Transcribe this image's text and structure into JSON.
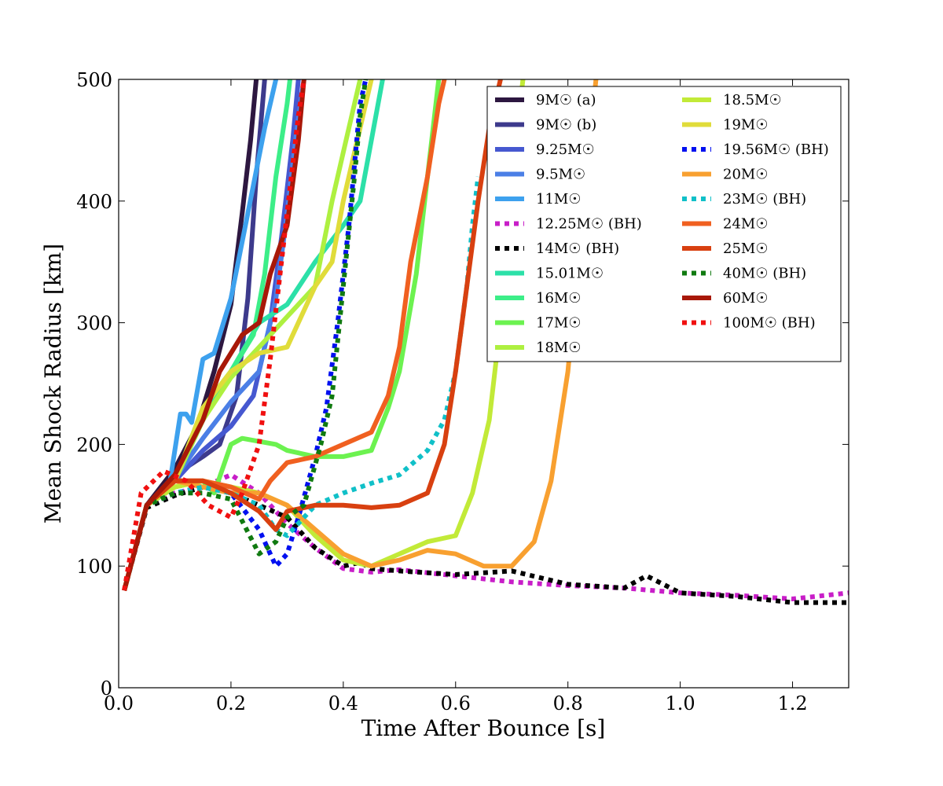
{
  "chart_data": {
    "type": "line",
    "title": "",
    "xlabel": "Time After Bounce [s]",
    "ylabel": "Mean Shock Radius [km]",
    "xlim": [
      0.0,
      1.3
    ],
    "ylim": [
      0,
      500
    ],
    "xticks": [
      "0.0",
      "0.2",
      "0.4",
      "0.6",
      "0.8",
      "1.0",
      "1.2"
    ],
    "yticks": [
      "0",
      "100",
      "200",
      "300",
      "400",
      "500"
    ],
    "legend_position": "top-right",
    "series": [
      {
        "name": "9M☉ (a)",
        "color": "#2d1740",
        "style": "solid",
        "x": [
          0.01,
          0.05,
          0.1,
          0.14,
          0.17,
          0.2,
          0.22,
          0.235,
          0.245
        ],
        "y": [
          80,
          150,
          180,
          215,
          260,
          315,
          390,
          450,
          500
        ]
      },
      {
        "name": "9M☉ (b)",
        "color": "#3d3a8c",
        "style": "solid",
        "x": [
          0.01,
          0.05,
          0.1,
          0.15,
          0.18,
          0.21,
          0.23,
          0.245,
          0.26
        ],
        "y": [
          80,
          150,
          175,
          190,
          200,
          240,
          320,
          420,
          500
        ]
      },
      {
        "name": "9.25M☉",
        "color": "#4658d0",
        "style": "solid",
        "x": [
          0.01,
          0.05,
          0.1,
          0.15,
          0.2,
          0.24,
          0.27,
          0.29,
          0.31,
          0.32
        ],
        "y": [
          80,
          150,
          170,
          195,
          215,
          240,
          300,
          370,
          450,
          500
        ]
      },
      {
        "name": "9.5M☉",
        "color": "#4b7fe6",
        "style": "solid",
        "x": [
          0.01,
          0.05,
          0.1,
          0.15,
          0.2,
          0.25,
          0.28,
          0.3,
          0.315,
          0.33
        ],
        "y": [
          80,
          150,
          172,
          205,
          235,
          260,
          320,
          390,
          450,
          500
        ]
      },
      {
        "name": "11M☉",
        "color": "#3da1ee",
        "style": "solid",
        "x": [
          0.01,
          0.05,
          0.09,
          0.11,
          0.12,
          0.13,
          0.15,
          0.17,
          0.2,
          0.23,
          0.26,
          0.28
        ],
        "y": [
          80,
          150,
          165,
          225,
          225,
          218,
          270,
          275,
          320,
          390,
          460,
          500
        ]
      },
      {
        "name": "12.25M☉ (BH)",
        "color": "#c81ec8",
        "style": "dotted",
        "x": [
          0.01,
          0.05,
          0.1,
          0.15,
          0.2,
          0.25,
          0.3,
          0.35,
          0.4,
          0.45,
          0.5,
          0.6,
          0.7,
          0.8,
          0.9,
          1.0,
          1.1,
          1.2,
          1.3
        ],
        "y": [
          80,
          148,
          160,
          165,
          175,
          160,
          135,
          115,
          98,
          95,
          97,
          92,
          87,
          84,
          82,
          78,
          76,
          73,
          78
        ]
      },
      {
        "name": "14M☉ (BH)",
        "color": "#000000",
        "style": "dotted",
        "x": [
          0.01,
          0.05,
          0.1,
          0.15,
          0.2,
          0.25,
          0.3,
          0.35,
          0.4,
          0.43,
          0.45,
          0.5,
          0.6,
          0.7,
          0.8,
          0.9,
          0.94,
          1.0,
          1.1,
          1.2,
          1.3
        ],
        "y": [
          80,
          148,
          158,
          165,
          160,
          150,
          140,
          115,
          100,
          103,
          98,
          96,
          93,
          96,
          85,
          82,
          92,
          78,
          75,
          70,
          70
        ]
      },
      {
        "name": "15.01M☉",
        "color": "#2ce0a8",
        "style": "solid",
        "x": [
          0.01,
          0.05,
          0.1,
          0.15,
          0.2,
          0.25,
          0.3,
          0.35,
          0.4,
          0.43,
          0.45,
          0.47
        ],
        "y": [
          80,
          150,
          170,
          220,
          260,
          300,
          315,
          350,
          380,
          400,
          450,
          500
        ]
      },
      {
        "name": "16M☉",
        "color": "#3cee88",
        "style": "solid",
        "x": [
          0.01,
          0.05,
          0.1,
          0.15,
          0.2,
          0.24,
          0.26,
          0.28,
          0.3,
          0.305
        ],
        "y": [
          80,
          150,
          170,
          230,
          260,
          290,
          340,
          420,
          480,
          500
        ]
      },
      {
        "name": "17M☉",
        "color": "#6cf250",
        "style": "solid",
        "x": [
          0.01,
          0.05,
          0.1,
          0.15,
          0.17,
          0.2,
          0.22,
          0.28,
          0.3,
          0.35,
          0.4,
          0.45,
          0.48,
          0.5,
          0.53,
          0.55,
          0.57
        ],
        "y": [
          80,
          150,
          165,
          170,
          160,
          200,
          205,
          200,
          195,
          190,
          190,
          195,
          230,
          260,
          340,
          420,
          500
        ]
      },
      {
        "name": "18M☉",
        "color": "#aef040",
        "style": "solid",
        "x": [
          0.01,
          0.05,
          0.1,
          0.15,
          0.2,
          0.25,
          0.3,
          0.35,
          0.38,
          0.4,
          0.42,
          0.43
        ],
        "y": [
          80,
          150,
          170,
          220,
          255,
          280,
          305,
          330,
          400,
          440,
          480,
          500
        ]
      },
      {
        "name": "18.5M☉",
        "color": "#c2ea38",
        "style": "solid",
        "x": [
          0.01,
          0.05,
          0.1,
          0.15,
          0.2,
          0.25,
          0.3,
          0.35,
          0.4,
          0.45,
          0.5,
          0.55,
          0.6,
          0.63,
          0.66,
          0.68,
          0.7,
          0.72
        ],
        "y": [
          80,
          150,
          165,
          170,
          165,
          160,
          150,
          125,
          105,
          100,
          110,
          120,
          125,
          160,
          220,
          300,
          420,
          500
        ]
      },
      {
        "name": "19M☉",
        "color": "#e0dc3a",
        "style": "solid",
        "x": [
          0.01,
          0.05,
          0.1,
          0.15,
          0.2,
          0.25,
          0.3,
          0.33,
          0.35,
          0.38,
          0.4,
          0.42,
          0.44,
          0.45
        ],
        "y": [
          80,
          150,
          170,
          230,
          260,
          275,
          280,
          310,
          330,
          350,
          400,
          440,
          480,
          500
        ]
      },
      {
        "name": "19.56M☉ (BH)",
        "color": "#0010f0",
        "style": "dotted",
        "x": [
          0.01,
          0.05,
          0.1,
          0.15,
          0.2,
          0.25,
          0.28,
          0.3,
          0.32,
          0.35,
          0.37,
          0.39,
          0.41,
          0.42,
          0.43,
          0.44
        ],
        "y": [
          80,
          150,
          160,
          165,
          160,
          130,
          100,
          110,
          140,
          190,
          230,
          300,
          380,
          430,
          480,
          500
        ]
      },
      {
        "name": "20M☉",
        "color": "#f8a030",
        "style": "solid",
        "x": [
          0.01,
          0.05,
          0.1,
          0.15,
          0.2,
          0.25,
          0.3,
          0.35,
          0.4,
          0.45,
          0.5,
          0.55,
          0.6,
          0.65,
          0.7,
          0.74,
          0.77,
          0.8,
          0.82,
          0.85
        ],
        "y": [
          80,
          150,
          170,
          165,
          160,
          160,
          150,
          130,
          110,
          100,
          105,
          113,
          110,
          100,
          100,
          120,
          170,
          260,
          360,
          500
        ]
      },
      {
        "name": "23M☉ (BH)",
        "color": "#10c0c8",
        "style": "dotted",
        "x": [
          0.01,
          0.05,
          0.1,
          0.15,
          0.2,
          0.25,
          0.28,
          0.3,
          0.35,
          0.4,
          0.45,
          0.5,
          0.55,
          0.58,
          0.6,
          0.62,
          0.63,
          0.64
        ],
        "y": [
          80,
          150,
          160,
          165,
          160,
          150,
          130,
          125,
          150,
          160,
          168,
          175,
          195,
          220,
          260,
          330,
          380,
          420
        ]
      },
      {
        "name": "24M☉",
        "color": "#f06020",
        "style": "solid",
        "x": [
          0.01,
          0.05,
          0.1,
          0.15,
          0.2,
          0.25,
          0.27,
          0.3,
          0.35,
          0.4,
          0.45,
          0.48,
          0.5,
          0.52,
          0.55,
          0.57,
          0.58
        ],
        "y": [
          80,
          150,
          170,
          170,
          165,
          155,
          170,
          185,
          190,
          200,
          210,
          240,
          280,
          350,
          420,
          480,
          500
        ]
      },
      {
        "name": "25M☉",
        "color": "#d84010",
        "style": "solid",
        "x": [
          0.01,
          0.05,
          0.1,
          0.15,
          0.2,
          0.25,
          0.28,
          0.3,
          0.35,
          0.4,
          0.45,
          0.5,
          0.55,
          0.58,
          0.6,
          0.62,
          0.64,
          0.66,
          0.68
        ],
        "y": [
          80,
          150,
          170,
          170,
          160,
          145,
          130,
          145,
          150,
          150,
          148,
          150,
          160,
          200,
          260,
          330,
          400,
          460,
          500
        ]
      },
      {
        "name": "40M☉ (BH)",
        "color": "#107a10",
        "style": "dotted",
        "x": [
          0.01,
          0.05,
          0.1,
          0.15,
          0.2,
          0.25,
          0.28,
          0.3,
          0.33,
          0.36,
          0.38,
          0.4,
          0.42,
          0.43,
          0.44
        ],
        "y": [
          80,
          150,
          160,
          160,
          155,
          110,
          120,
          140,
          150,
          200,
          240,
          330,
          420,
          470,
          500
        ]
      },
      {
        "name": "60M☉",
        "color": "#a81808",
        "style": "solid",
        "x": [
          0.01,
          0.05,
          0.1,
          0.15,
          0.18,
          0.22,
          0.25,
          0.27,
          0.3,
          0.32,
          0.33
        ],
        "y": [
          80,
          150,
          175,
          220,
          260,
          290,
          300,
          340,
          380,
          450,
          500
        ]
      },
      {
        "name": "100M☉ (BH)",
        "color": "#f01010",
        "style": "dotted",
        "x": [
          0.01,
          0.04,
          0.08,
          0.12,
          0.16,
          0.2,
          0.22,
          0.25,
          0.27,
          0.29,
          0.31,
          0.32,
          0.33
        ],
        "y": [
          80,
          160,
          178,
          170,
          150,
          140,
          160,
          200,
          270,
          350,
          430,
          470,
          500
        ]
      }
    ]
  }
}
